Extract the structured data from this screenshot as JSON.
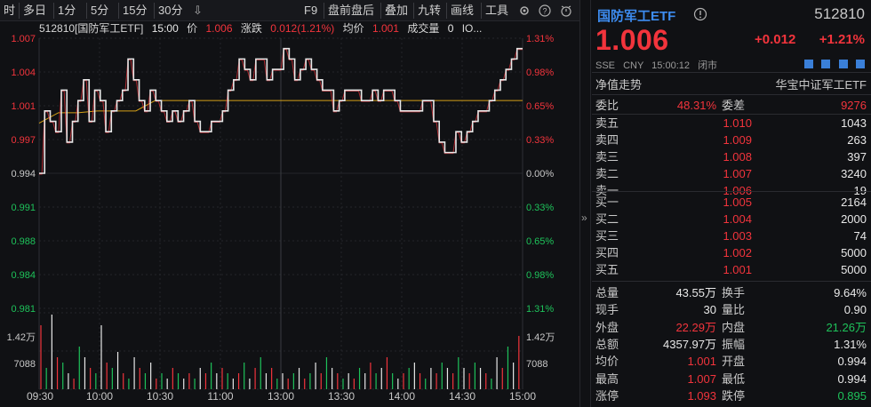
{
  "toolbar": {
    "buttons": [
      "时",
      "多日",
      "1分",
      "5分",
      "15分",
      "30分",
      "F9",
      "盘前盘后",
      "叠加",
      "九转",
      "画线",
      "工具"
    ]
  },
  "info": {
    "name": "512810[国防军工ETF]",
    "time": "15:00",
    "price_label": "价",
    "price": "1.006",
    "chg_label": "涨跌",
    "chg": "0.012(1.21%)",
    "avg_label": "均价",
    "avg": "1.001",
    "vol_label": "成交量",
    "vol": "0",
    "io": "IO..."
  },
  "chart_data": {
    "type": "line",
    "title": "",
    "price_axis": [
      "1.007",
      "1.004",
      "1.001",
      "0.997",
      "0.994",
      "0.991",
      "0.988",
      "0.984",
      "0.981"
    ],
    "pct_axis": [
      "1.31%",
      "0.98%",
      "0.65%",
      "0.33%",
      "0.00%",
      "0.33%",
      "0.65%",
      "0.98%",
      "1.31%"
    ],
    "vol_axis": [
      "1.42万",
      "7088"
    ],
    "x_labels": [
      "09:30",
      "10:00",
      "10:30",
      "11:00",
      "13:00",
      "13:30",
      "14:00",
      "14:30",
      "15:00"
    ],
    "ylim": [
      0.981,
      1.007
    ],
    "prev_close": 0.994,
    "price_series": [
      0.994,
      1.0,
      0.999,
      0.998,
      1.002,
      0.997,
      0.999,
      1.001,
      1.003,
      0.999,
      1.002,
      1.001,
      0.998,
      1.0,
      1.001,
      1.002,
      1.005,
      1.003,
      1.001,
      1.0,
      1.002,
      1.001,
      1.0,
      0.999,
      1.0,
      0.999,
      1.0,
      1.001,
      0.999,
      0.998,
      0.998,
      0.999,
      0.999,
      1.0,
      1.002,
      1.003,
      1.005,
      1.004,
      1.003,
      1.005,
      1.005,
      1.003,
      1.004,
      1.004,
      1.006,
      1.005,
      1.003,
      1.004,
      1.005,
      1.004,
      1.003,
      1.002,
      1.002,
      1.0,
      1.001,
      1.002,
      1.002,
      1.002,
      1.001,
      1.001,
      1.002,
      1.001,
      1.002,
      1.002,
      1.001,
      1.0,
      1.0,
      1.0,
      1.0,
      1.001,
      1.001,
      0.999,
      0.997,
      0.996,
      0.996,
      0.998,
      0.997,
      0.998,
      0.999,
      1.0,
      1.0,
      1.001,
      1.002,
      1.003,
      1.004,
      1.005,
      1.006,
      1.006
    ],
    "avg_series": [
      0.999,
      1.0,
      1.0,
      1.0,
      1.0,
      1.0,
      1.001,
      1.001,
      1.001,
      1.001,
      1.001,
      1.001,
      1.001,
      1.001,
      1.001,
      1.001,
      1.001,
      1.001,
      1.001,
      1.001,
      1.001,
      1.001,
      1.001,
      1.001,
      1.001,
      1.001
    ],
    "volume_series": [
      12,
      4,
      14,
      6,
      5,
      3,
      2,
      8,
      6,
      4,
      3,
      12,
      5,
      4,
      7,
      3,
      2,
      6,
      4,
      3,
      5,
      2,
      3,
      2,
      4,
      3,
      2,
      3,
      2,
      4,
      3,
      5,
      3,
      4,
      3,
      2,
      3,
      5,
      2,
      4,
      6,
      3,
      4,
      2,
      3,
      2,
      3,
      4,
      2,
      3,
      5,
      3,
      6,
      4,
      3,
      2,
      3,
      2,
      4,
      3,
      5,
      3,
      4,
      6,
      3,
      2,
      3,
      4,
      5,
      3,
      2,
      4,
      3,
      5,
      4,
      3,
      6,
      4,
      3,
      5,
      4,
      3,
      2,
      6,
      4,
      8,
      5,
      10
    ],
    "colors": {
      "price": "#e8e8e8",
      "avg": "#d4a017",
      "grid": "#23252a",
      "up": "#f2343c",
      "down": "#1ec25a",
      "vol_white": "#e8e8e8"
    }
  },
  "quote": {
    "name": "国防军工ETF",
    "code": "512810",
    "price": "1.006",
    "change": "+0.012",
    "change_pct": "+1.21%",
    "meta": [
      "SSE",
      "CNY",
      "15:00:12",
      "闭市"
    ],
    "nav_label": "净值走势",
    "index_label": "华宝中证军工ETF",
    "webi_label": "委比",
    "webi_val": "48.31%",
    "weicha_label": "委差",
    "weicha_val": "9276"
  },
  "sells": [
    {
      "label": "卖五",
      "price": "1.010",
      "vol": "1043"
    },
    {
      "label": "卖四",
      "price": "1.009",
      "vol": "263"
    },
    {
      "label": "卖三",
      "price": "1.008",
      "vol": "397"
    },
    {
      "label": "卖二",
      "price": "1.007",
      "vol": "3240"
    },
    {
      "label": "卖一",
      "price": "1.006",
      "vol": "19"
    }
  ],
  "buys": [
    {
      "label": "买一",
      "price": "1.005",
      "vol": "2164"
    },
    {
      "label": "买二",
      "price": "1.004",
      "vol": "2000"
    },
    {
      "label": "买三",
      "price": "1.003",
      "vol": "74"
    },
    {
      "label": "买四",
      "price": "1.002",
      "vol": "5000"
    },
    {
      "label": "买五",
      "price": "1.001",
      "vol": "5000"
    }
  ],
  "stats": [
    {
      "l1": "总量",
      "v1": "43.55万",
      "c1": "white",
      "l2": "换手",
      "v2": "9.64%",
      "c2": "white"
    },
    {
      "l1": "现手",
      "v1": "30",
      "c1": "white",
      "l2": "量比",
      "v2": "0.90",
      "c2": "white"
    },
    {
      "l1": "外盘",
      "v1": "22.29万",
      "c1": "red",
      "l2": "内盘",
      "v2": "21.26万",
      "c2": "green"
    },
    {
      "l1": "总额",
      "v1": "4357.97万",
      "c1": "white",
      "l2": "振幅",
      "v2": "1.31%",
      "c2": "white"
    },
    {
      "l1": "均价",
      "v1": "1.001",
      "c1": "red",
      "l2": "开盘",
      "v2": "0.994",
      "c2": "white"
    },
    {
      "l1": "最高",
      "v1": "1.007",
      "c1": "red",
      "l2": "最低",
      "v2": "0.994",
      "c2": "white"
    },
    {
      "l1": "涨停",
      "v1": "1.093",
      "c1": "red",
      "l2": "跌停",
      "v2": "0.895",
      "c2": "green"
    }
  ]
}
